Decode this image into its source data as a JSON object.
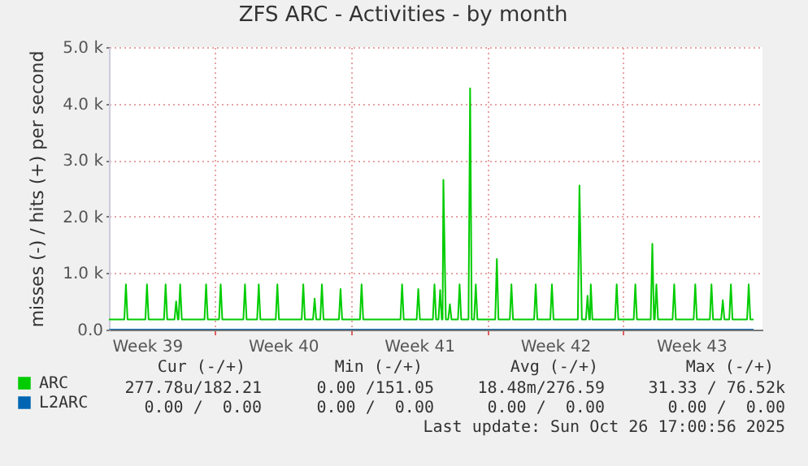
{
  "chart_data": {
    "type": "line",
    "title": "ZFS ARC - Activities - by month",
    "ylabel": "misses (-) / hits (+) per second",
    "xlim": [
      "2025-09-23T13:00",
      "2025-10-27T04:00"
    ],
    "xticks": [
      {
        "value": "2025-09-25T12:00",
        "label": "Week 39"
      },
      {
        "value": "2025-09-29T00:00",
        "label": null
      },
      {
        "value": "2025-10-02T12:00",
        "label": "Week 40"
      },
      {
        "value": "2025-10-06T00:00",
        "label": null
      },
      {
        "value": "2025-10-09T12:00",
        "label": "Week 41"
      },
      {
        "value": "2025-10-13T00:00",
        "label": null
      },
      {
        "value": "2025-10-16T12:00",
        "label": "Week 42"
      },
      {
        "value": "2025-10-20T00:00",
        "label": null
      },
      {
        "value": "2025-10-23T12:00",
        "label": "Week 43"
      }
    ],
    "ylim": [
      0,
      5000
    ],
    "yticks": [
      {
        "value": 0,
        "label": "0.0"
      },
      {
        "value": 1000,
        "label": "1.0 k"
      },
      {
        "value": 2000,
        "label": "2.0 k"
      },
      {
        "value": 3000,
        "label": "3.0 k"
      },
      {
        "value": 4000,
        "label": "4.0 k"
      },
      {
        "value": 5000,
        "label": "5.0 k"
      }
    ],
    "grid": true,
    "legend": "bottom",
    "series": [
      {
        "name": "ARC",
        "color": "#00cc00",
        "x": [
          "2025-09-23T13:00",
          "2025-09-24T08:00",
          "2025-09-24T10:00",
          "2025-09-24T12:00",
          "2025-09-25T10:00",
          "2025-09-25T12:00",
          "2025-09-25T14:00",
          "2025-09-26T09:00",
          "2025-09-26T11:00",
          "2025-09-26T13:00",
          "2025-09-26T22:00",
          "2025-09-27T00:00",
          "2025-09-27T02:00",
          "2025-09-27T03:00",
          "2025-09-27T05:00",
          "2025-09-27T07:00",
          "2025-09-28T11:00",
          "2025-09-28T13:00",
          "2025-09-28T15:00",
          "2025-09-29T05:00",
          "2025-09-29T07:00",
          "2025-09-29T09:00",
          "2025-09-30T11:00",
          "2025-09-30T13:00",
          "2025-09-30T15:00",
          "2025-10-01T04:00",
          "2025-10-01T06:00",
          "2025-10-01T08:00",
          "2025-10-02T03:00",
          "2025-10-02T05:00",
          "2025-10-02T07:00",
          "2025-10-03T11:00",
          "2025-10-03T13:00",
          "2025-10-03T15:00",
          "2025-10-04T01:00",
          "2025-10-04T03:00",
          "2025-10-04T05:00",
          "2025-10-04T10:00",
          "2025-10-04T12:00",
          "2025-10-04T14:00",
          "2025-10-05T09:00",
          "2025-10-05T11:00",
          "2025-10-05T13:00",
          "2025-10-06T11:00",
          "2025-10-06T13:00",
          "2025-10-06T15:00",
          "2025-10-08T13:00",
          "2025-10-08T15:00",
          "2025-10-08T17:00",
          "2025-10-09T09:00",
          "2025-10-09T11:00",
          "2025-10-09T13:00",
          "2025-10-10T05:00",
          "2025-10-10T07:00",
          "2025-10-10T09:00",
          "2025-10-10T12:00",
          "2025-10-10T14:00",
          "2025-10-10T16:00",
          "2025-10-10T17:00",
          "2025-10-10T18:00",
          "2025-10-10T21:00",
          "2025-10-11T00:00",
          "2025-10-11T02:00",
          "2025-10-11T04:00",
          "2025-10-11T12:00",
          "2025-10-11T14:00",
          "2025-10-11T16:00",
          "2025-10-12T01:00",
          "2025-10-12T03:00",
          "2025-10-12T05:00",
          "2025-10-12T08:00",
          "2025-10-12T10:00",
          "2025-10-12T12:00",
          "2025-10-13T10:00",
          "2025-10-13T12:00",
          "2025-10-13T14:00",
          "2025-10-14T04:00",
          "2025-10-14T06:00",
          "2025-10-14T08:00",
          "2025-10-15T10:00",
          "2025-10-15T12:00",
          "2025-10-15T14:00",
          "2025-10-16T06:00",
          "2025-10-16T08:00",
          "2025-10-16T10:00",
          "2025-10-17T16:00",
          "2025-10-17T18:00",
          "2025-10-17T21:00",
          "2025-10-18T02:00",
          "2025-10-18T04:00",
          "2025-10-18T06:00",
          "2025-10-18T07:00",
          "2025-10-18T08:00",
          "2025-10-18T10:00",
          "2025-10-19T14:00",
          "2025-10-19T16:00",
          "2025-10-19T18:00",
          "2025-10-20T13:00",
          "2025-10-20T15:00",
          "2025-10-20T17:00",
          "2025-10-21T10:00",
          "2025-10-21T12:00",
          "2025-10-21T14:00",
          "2025-10-21T15:00",
          "2025-10-21T17:00",
          "2025-10-21T19:00",
          "2025-10-22T13:00",
          "2025-10-22T15:00",
          "2025-10-22T17:00",
          "2025-10-23T15:00",
          "2025-10-23T17:00",
          "2025-10-23T19:00",
          "2025-10-24T11:00",
          "2025-10-24T13:00",
          "2025-10-24T15:00",
          "2025-10-25T01:00",
          "2025-10-25T03:00",
          "2025-10-25T05:00",
          "2025-10-25T11:00",
          "2025-10-25T13:00",
          "2025-10-25T15:00",
          "2025-10-26T09:00",
          "2025-10-26T11:00",
          "2025-10-26T13:00",
          "2025-10-26T17:00"
        ],
        "values": [
          180,
          180,
          800,
          180,
          180,
          800,
          180,
          180,
          800,
          180,
          180,
          500,
          180,
          180,
          800,
          180,
          180,
          800,
          180,
          180,
          800,
          180,
          180,
          800,
          180,
          180,
          800,
          180,
          180,
          800,
          180,
          180,
          800,
          180,
          180,
          550,
          180,
          180,
          800,
          180,
          180,
          720,
          180,
          180,
          800,
          180,
          180,
          800,
          180,
          180,
          720,
          180,
          180,
          800,
          180,
          180,
          700,
          180,
          180,
          2650,
          180,
          180,
          450,
          180,
          180,
          800,
          180,
          180,
          4270,
          180,
          180,
          800,
          180,
          180,
          1250,
          180,
          180,
          800,
          180,
          180,
          800,
          180,
          180,
          800,
          180,
          180,
          2550,
          180,
          180,
          600,
          180,
          180,
          800,
          180,
          180,
          800,
          180,
          180,
          800,
          180,
          180,
          1520,
          180,
          180,
          800,
          180,
          180,
          800,
          180,
          180,
          800,
          180,
          180,
          800,
          180,
          180,
          520,
          180,
          180,
          800,
          180,
          180,
          800,
          180,
          180
        ]
      },
      {
        "name": "L2ARC",
        "color": "#0066b3",
        "x": [
          "2025-09-23T13:00",
          "2025-10-26T17:00"
        ],
        "values": [
          0,
          0
        ]
      }
    ],
    "annotations": [
      "Cur (-/+)",
      "Min (-/+)",
      "Avg (-/+)",
      "Max (-/+)",
      "277.78u/182.21",
      "0.00 /151.05",
      "18.48m/276.59",
      "31.33 / 76.52k",
      "0.00 /  0.00",
      "0.00 /  0.00",
      "0.00 /  0.00",
      "0.00 /  0.00",
      "Last update: Sun Oct 26 17:00:56 2025"
    ]
  }
}
